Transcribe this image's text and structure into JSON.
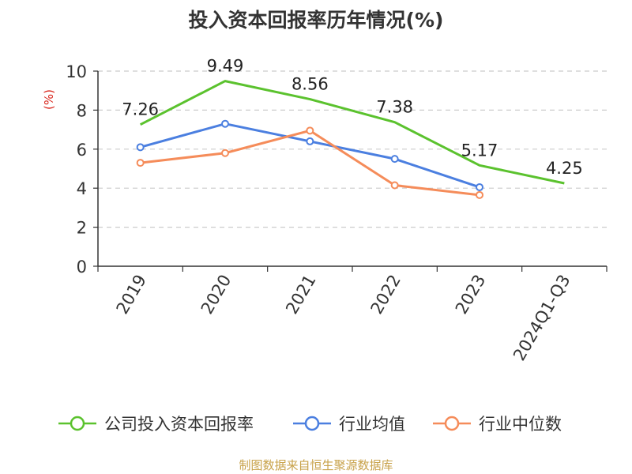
{
  "chart_data": {
    "type": "line",
    "title": "投入资本回报率历年情况(%)",
    "ylabel": "(%)",
    "xlabel": "",
    "categories": [
      "2019",
      "2020",
      "2021",
      "2022",
      "2023",
      "2024Q1-Q3"
    ],
    "ylim": [
      0,
      10
    ],
    "yticks": [
      0,
      2,
      4,
      6,
      8,
      10
    ],
    "grid": true,
    "legend_position": "bottom",
    "series": [
      {
        "name": "公司投入资本回报率",
        "color": "#5bc22e",
        "values": [
          7.26,
          9.49,
          8.56,
          7.38,
          5.17,
          4.25
        ],
        "labels": [
          "7.26",
          "9.49",
          "8.56",
          "7.38",
          "5.17",
          "4.25"
        ]
      },
      {
        "name": "行业均值",
        "color": "#4b7fe0",
        "values": [
          6.1,
          7.3,
          6.4,
          5.5,
          4.05,
          null
        ]
      },
      {
        "name": "行业中位数",
        "color": "#f58c5a",
        "values": [
          5.3,
          5.8,
          6.95,
          4.15,
          3.65,
          null
        ]
      }
    ]
  },
  "source": "制图数据来自恒生聚源数据库"
}
